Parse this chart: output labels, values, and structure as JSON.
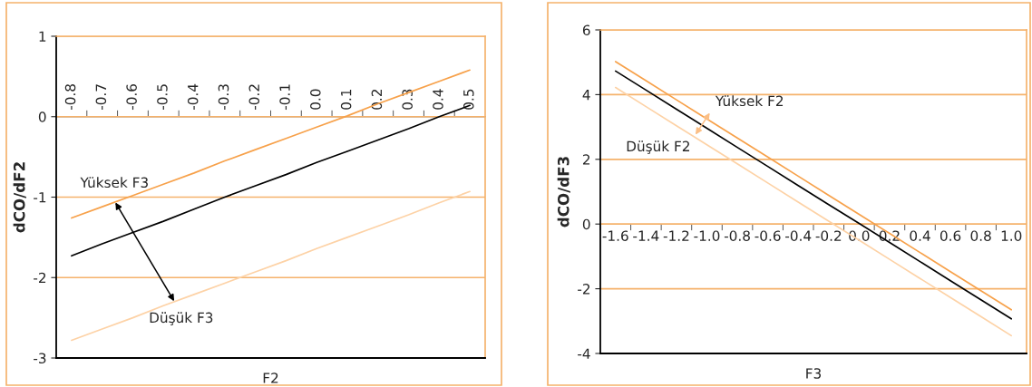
{
  "chart_data": [
    {
      "type": "line",
      "xlabel": "F2",
      "ylabel": "dCO/dF2",
      "categories": [
        "-0.8",
        "-0.7",
        "-0.6",
        "-0.5",
        "-0.4",
        "-0.3",
        "-0.2",
        "-0.1",
        "0.0",
        "0.1",
        "0.2",
        "0.3",
        "0.4",
        "0.5"
      ],
      "series": [
        {
          "color": "#000000",
          "values": [
            -1.73,
            -1.58,
            -1.44,
            -1.3,
            -1.15,
            -1.0,
            -0.86,
            -0.72,
            -0.57,
            -0.43,
            -0.29,
            -0.15,
            0.0,
            0.14
          ]
        },
        {
          "name": "Yüksek F3",
          "color": "#f7a14a",
          "values": [
            -1.26,
            -1.12,
            -0.98,
            -0.84,
            -0.7,
            -0.55,
            -0.41,
            -0.27,
            -0.13,
            0.01,
            0.16,
            0.3,
            0.44,
            0.58
          ]
        },
        {
          "name": "Düşük F3",
          "color": "#fdd2a6",
          "values": [
            -2.78,
            -2.64,
            -2.5,
            -2.35,
            -2.21,
            -2.07,
            -1.93,
            -1.79,
            -1.64,
            -1.5,
            -1.36,
            -1.22,
            -1.07,
            -0.93
          ]
        }
      ],
      "ylim": [
        -3,
        1
      ],
      "yticks": [
        -3,
        -2,
        -1,
        0,
        1
      ],
      "grid": "y",
      "legend": false
    },
    {
      "type": "line",
      "xlabel": "F3",
      "ylabel": "dCO/dF3",
      "categories": [
        "-1.6",
        "-1.4",
        "-1.2",
        "-1.0",
        "-0.8",
        "-0.6",
        "-0.4",
        "-0.2",
        "0.0",
        "0.2",
        "0.4",
        "0.6",
        "0.8",
        "1.0"
      ],
      "series": [
        {
          "color": "#000000",
          "values": [
            4.73,
            4.14,
            3.55,
            2.96,
            2.37,
            1.78,
            1.19,
            0.6,
            0.02,
            -0.57,
            -1.16,
            -1.75,
            -2.34,
            -2.93
          ]
        },
        {
          "name": "Yüksek F2",
          "color": "#f7a14a",
          "values": [
            5.02,
            4.43,
            3.84,
            3.25,
            2.66,
            2.07,
            1.48,
            0.89,
            0.3,
            -0.29,
            -0.88,
            -1.47,
            -2.06,
            -2.65
          ]
        },
        {
          "name": "Düşük F2",
          "color": "#fdd2a6",
          "values": [
            4.22,
            3.63,
            3.04,
            2.45,
            1.86,
            1.27,
            0.68,
            0.09,
            -0.5,
            -1.09,
            -1.68,
            -2.27,
            -2.86,
            -3.45
          ]
        }
      ],
      "ylim": [
        -4,
        6
      ],
      "yticks": [
        -4,
        -2,
        0,
        2,
        4,
        6
      ],
      "grid": "y",
      "legend": false
    }
  ]
}
